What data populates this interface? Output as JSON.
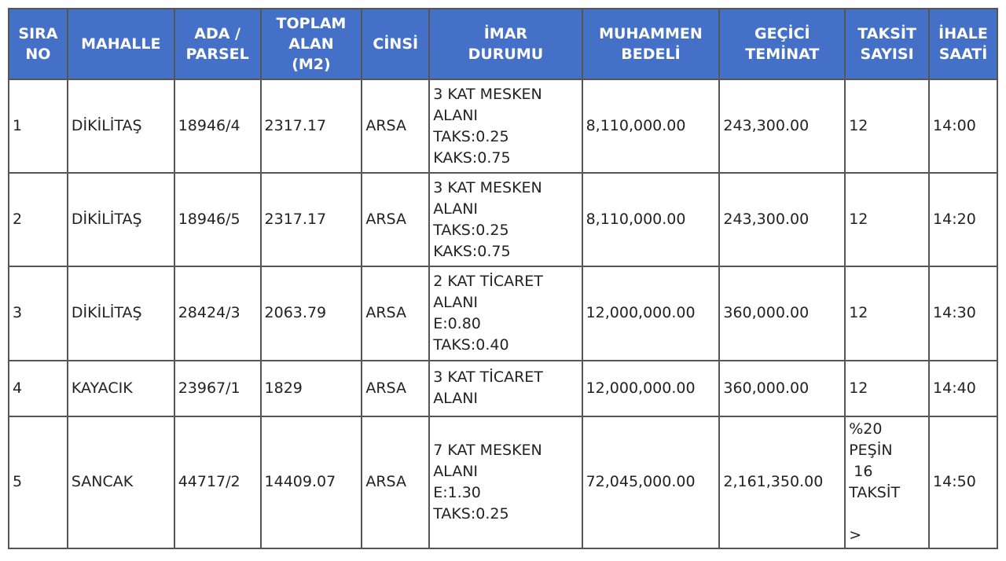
{
  "table": {
    "header": [
      "SIRA\nNO",
      "MAHALLE",
      "ADA /\nPARSEL",
      "TOPLAM\nALAN\n(M2)",
      "CİNSİ",
      "İMAR\nDURUMU",
      "MUHAMMEN\nBEDELİ",
      "GEÇİCİ\nTEMİNAT",
      "TAKSİT\nSAYISI",
      "İHALE\nSAATİ"
    ],
    "rows": [
      [
        "1",
        "DİKİLİTAŞ",
        "18946/4",
        "2317.17",
        "ARSA",
        "3 KAT MESKEN\nALANI\nTAKS:0.25\nKAKS:0.75",
        "8,110,000.00",
        "243,300.00",
        "12",
        "14:00"
      ],
      [
        "2",
        "DİKİLİTAŞ",
        "18946/5",
        "2317.17",
        "ARSA",
        "3 KAT MESKEN\nALANI\nTAKS:0.25\nKAKS:0.75",
        "8,110,000.00",
        "243,300.00",
        "12",
        "14:20"
      ],
      [
        "3",
        "DİKİLİTAŞ",
        "28424/3",
        "2063.79",
        "ARSA",
        "2 KAT TİCARET\nALANI\nE:0.80\nTAKS:0.40",
        "12,000,000.00",
        "360,000.00",
        "12",
        "14:30"
      ],
      [
        "4",
        "KAYACIK",
        "23967/1",
        "1829",
        "ARSA",
        "3 KAT TİCARET\nALANI",
        "12,000,000.00",
        "360,000.00",
        "12",
        "14:40"
      ],
      [
        "5",
        "SANCAK",
        "44717/2",
        "14409.07",
        "ARSA",
        "7 KAT MESKEN\nALANI\nE:1.30\nTAKS:0.25",
        "72,045,000.00",
        "2,161,350.00",
        "%20\nPEŞİN\n 16\nTAKSİT\n\n>",
        "14:50"
      ]
    ]
  }
}
